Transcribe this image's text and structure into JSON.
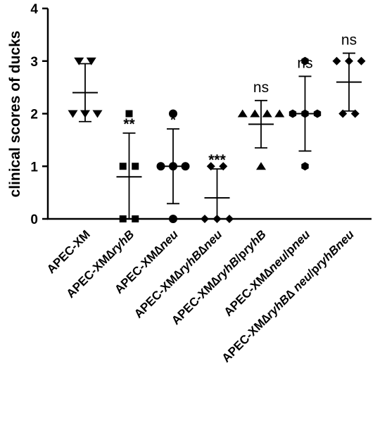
{
  "chart_data": {
    "type": "scatter",
    "ylabel": "clinical scores of ducks",
    "xlabel": "",
    "ylim": [
      0,
      4
    ],
    "yticks": [
      "0",
      "1",
      "2",
      "3",
      "4"
    ],
    "grid": false,
    "legend": "none",
    "groups": [
      {
        "name": "APEC-XM",
        "label_parts": [
          {
            "t": "APEC-XM",
            "i": false
          }
        ],
        "marker": "triangle-down",
        "values": [
          3,
          3,
          2,
          2,
          2
        ],
        "mean": 2.4,
        "sd_low": 1.85,
        "sd_high": 2.95,
        "significance": ""
      },
      {
        "name": "APEC-XM∆ryhB",
        "label_parts": [
          {
            "t": "APEC-XM",
            "i": false
          },
          {
            "t": "∆",
            "i": false
          },
          {
            "t": "ryhB",
            "i": true
          }
        ],
        "marker": "square",
        "values": [
          2,
          1,
          1,
          0,
          0
        ],
        "mean": 0.8,
        "sd_low": 0,
        "sd_high": 1.63,
        "significance": "**"
      },
      {
        "name": "APEC-XM∆neu",
        "label_parts": [
          {
            "t": "APEC-XM",
            "i": false
          },
          {
            "t": "∆",
            "i": false
          },
          {
            "t": "neu",
            "i": true
          }
        ],
        "marker": "circle",
        "values": [
          2,
          1,
          1,
          1,
          0
        ],
        "mean": 1.0,
        "sd_low": 0.29,
        "sd_high": 1.71,
        "significance": "*"
      },
      {
        "name": "APEC-XM∆ryhB∆neu",
        "label_parts": [
          {
            "t": "APEC-XM",
            "i": false
          },
          {
            "t": "∆",
            "i": false
          },
          {
            "t": "ryhB",
            "i": true
          },
          {
            "t": "∆",
            "i": false
          },
          {
            "t": "neu",
            "i": true
          }
        ],
        "marker": "diamond",
        "values": [
          1,
          1,
          0,
          0,
          0
        ],
        "mean": 0.4,
        "sd_low": 0,
        "sd_high": 0.95,
        "significance": "***"
      },
      {
        "name": "APEC-XM∆ryhB/pryhB",
        "label_parts": [
          {
            "t": "APEC-XM",
            "i": false
          },
          {
            "t": "∆",
            "i": false
          },
          {
            "t": "ryhB",
            "i": true
          },
          {
            "t": "/p",
            "i": false
          },
          {
            "t": "ryhB",
            "i": true
          }
        ],
        "marker": "triangle-up",
        "values": [
          2,
          2,
          2,
          2,
          1
        ],
        "mean": 1.8,
        "sd_low": 1.35,
        "sd_high": 2.25,
        "significance": "ns"
      },
      {
        "name": "APEC-XM∆neu/pneu",
        "label_parts": [
          {
            "t": "APEC-XM",
            "i": false
          },
          {
            "t": "∆",
            "i": false
          },
          {
            "t": "neu",
            "i": true
          },
          {
            "t": "/p",
            "i": false
          },
          {
            "t": "neu",
            "i": true
          }
        ],
        "marker": "hexagon",
        "values": [
          3,
          2,
          2,
          2,
          1
        ],
        "mean": 2.0,
        "sd_low": 1.29,
        "sd_high": 2.71,
        "significance": "ns"
      },
      {
        "name": "APEC-XM∆ryhB∆neu/pryhBneu",
        "label_parts": [
          {
            "t": "APEC-XM",
            "i": false
          },
          {
            "t": "∆",
            "i": false
          },
          {
            "t": "ryhB",
            "i": true
          },
          {
            "t": "∆ ",
            "i": false
          },
          {
            "t": "neu",
            "i": true
          },
          {
            "t": "/p",
            "i": false
          },
          {
            "t": "ryhBneu",
            "i": true
          }
        ],
        "marker": "diamond",
        "values": [
          3,
          3,
          3,
          2,
          2
        ],
        "mean": 2.6,
        "sd_low": 2.05,
        "sd_high": 3.15,
        "significance": "ns"
      }
    ]
  }
}
